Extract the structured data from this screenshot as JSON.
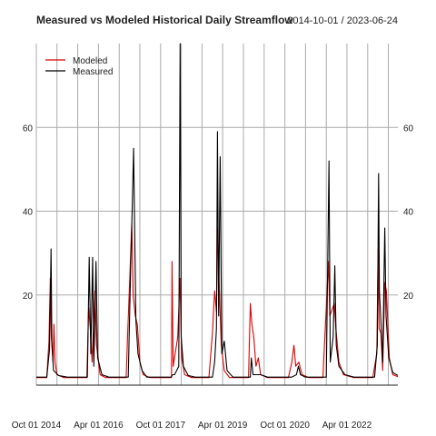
{
  "chart_data": {
    "type": "line",
    "title": "Measured vs Modeled Historical Daily Streamflow",
    "date_range": "2014-10-01 / 2023-06-24",
    "x_tick_labels": [
      "Oct 01 2014",
      "Apr 01 2016",
      "Oct 01 2017",
      "Apr 01 2019",
      "Oct 01 2020",
      "Apr 01 2022"
    ],
    "x_ticks_dates": [
      "2014-10-01",
      "2016-04-01",
      "2017-10-01",
      "2019-04-01",
      "2020-10-01",
      "2022-04-01"
    ],
    "xlim": [
      "2014-10-01",
      "2023-06-24"
    ],
    "ylim": [
      -1.5,
      80
    ],
    "y_ticks": [
      20,
      40,
      60
    ],
    "y_ticks_both_sides": true,
    "grid": true,
    "legend_position": "top-left",
    "series": [
      {
        "name": "Modeled",
        "color": "#dd0000",
        "points": [
          [
            "2014-10-01",
            0.3
          ],
          [
            "2015-01-01",
            0.3
          ],
          [
            "2015-01-20",
            9
          ],
          [
            "2015-02-01",
            24
          ],
          [
            "2015-02-10",
            10
          ],
          [
            "2015-02-25",
            4
          ],
          [
            "2015-03-05",
            13
          ],
          [
            "2015-03-15",
            4
          ],
          [
            "2015-04-01",
            1
          ],
          [
            "2015-06-01",
            0.3
          ],
          [
            "2015-12-20",
            0.3
          ],
          [
            "2016-01-05",
            17
          ],
          [
            "2016-01-20",
            12
          ],
          [
            "2016-02-05",
            4
          ],
          [
            "2016-03-01",
            21
          ],
          [
            "2016-03-15",
            8
          ],
          [
            "2016-04-15",
            1
          ],
          [
            "2016-06-01",
            0.3
          ],
          [
            "2016-12-01",
            0.3
          ],
          [
            "2016-12-15",
            11
          ],
          [
            "2017-01-05",
            26
          ],
          [
            "2017-01-20",
            37
          ],
          [
            "2017-02-01",
            20
          ],
          [
            "2017-02-20",
            15
          ],
          [
            "2017-03-10",
            13
          ],
          [
            "2017-04-01",
            4
          ],
          [
            "2017-05-01",
            1
          ],
          [
            "2017-07-01",
            0.3
          ],
          [
            "2018-01-05",
            0.3
          ],
          [
            "2018-01-10",
            28
          ],
          [
            "2018-01-20",
            3
          ],
          [
            "2018-03-01",
            10
          ],
          [
            "2018-03-20",
            24
          ],
          [
            "2018-04-05",
            5
          ],
          [
            "2018-05-01",
            1
          ],
          [
            "2018-07-01",
            0.3
          ],
          [
            "2018-12-01",
            0.3
          ],
          [
            "2019-01-01",
            11
          ],
          [
            "2019-01-20",
            21
          ],
          [
            "2019-02-05",
            16
          ],
          [
            "2019-02-15",
            36
          ],
          [
            "2019-03-01",
            23
          ],
          [
            "2019-03-20",
            8
          ],
          [
            "2019-04-15",
            2
          ],
          [
            "2019-06-01",
            0.3
          ],
          [
            "2019-11-15",
            0.3
          ],
          [
            "2019-12-01",
            18
          ],
          [
            "2019-12-15",
            13
          ],
          [
            "2020-01-01",
            10
          ],
          [
            "2020-01-20",
            3
          ],
          [
            "2020-02-10",
            5
          ],
          [
            "2020-03-01",
            1
          ],
          [
            "2020-05-01",
            0.3
          ],
          [
            "2020-11-01",
            0.3
          ],
          [
            "2020-12-01",
            4
          ],
          [
            "2020-12-20",
            8
          ],
          [
            "2021-01-05",
            3
          ],
          [
            "2021-02-01",
            4
          ],
          [
            "2021-03-01",
            1
          ],
          [
            "2021-05-01",
            0.3
          ],
          [
            "2021-09-01",
            0.3
          ],
          [
            "2021-10-20",
            28
          ],
          [
            "2021-11-01",
            15
          ],
          [
            "2021-12-10",
            18
          ],
          [
            "2021-12-25",
            12
          ],
          [
            "2022-01-20",
            4
          ],
          [
            "2022-03-01",
            1
          ],
          [
            "2022-06-01",
            0.3
          ],
          [
            "2022-11-15",
            0.3
          ],
          [
            "2022-12-20",
            6
          ],
          [
            "2023-01-01",
            31
          ],
          [
            "2023-01-10",
            12
          ],
          [
            "2023-01-25",
            11
          ],
          [
            "2023-02-10",
            2
          ],
          [
            "2023-03-01",
            23
          ],
          [
            "2023-03-15",
            21
          ],
          [
            "2023-04-10",
            5
          ],
          [
            "2023-05-10",
            1
          ],
          [
            "2023-06-24",
            0.5
          ]
        ]
      },
      {
        "name": "Measured",
        "color": "#000000",
        "points": [
          [
            "2014-10-01",
            0.4
          ],
          [
            "2015-01-01",
            0.4
          ],
          [
            "2015-01-25",
            7
          ],
          [
            "2015-02-08",
            31
          ],
          [
            "2015-02-15",
            9
          ],
          [
            "2015-03-01",
            2
          ],
          [
            "2015-04-15",
            0.8
          ],
          [
            "2015-07-01",
            0.4
          ],
          [
            "2015-12-25",
            0.4
          ],
          [
            "2016-01-10",
            29
          ],
          [
            "2016-01-25",
            6
          ],
          [
            "2016-02-10",
            29
          ],
          [
            "2016-02-20",
            3
          ],
          [
            "2016-03-10",
            28
          ],
          [
            "2016-03-25",
            5
          ],
          [
            "2016-05-01",
            1
          ],
          [
            "2016-07-01",
            0.4
          ],
          [
            "2016-12-20",
            0.4
          ],
          [
            "2017-01-10",
            27
          ],
          [
            "2017-01-25",
            42
          ],
          [
            "2017-02-05",
            55
          ],
          [
            "2017-02-15",
            33
          ],
          [
            "2017-02-25",
            14
          ],
          [
            "2017-03-15",
            6
          ],
          [
            "2017-04-20",
            2
          ],
          [
            "2017-06-01",
            0.4
          ],
          [
            "2018-01-01",
            0.4
          ],
          [
            "2018-01-15",
            1
          ],
          [
            "2018-02-01",
            1
          ],
          [
            "2018-03-10",
            3
          ],
          [
            "2018-03-22",
            80
          ],
          [
            "2018-04-01",
            10
          ],
          [
            "2018-04-20",
            3
          ],
          [
            "2018-06-01",
            0.8
          ],
          [
            "2018-08-01",
            0.4
          ],
          [
            "2019-01-01",
            0.4
          ],
          [
            "2019-01-20",
            4
          ],
          [
            "2019-02-05",
            12
          ],
          [
            "2019-02-14",
            59
          ],
          [
            "2019-02-25",
            15
          ],
          [
            "2019-03-10",
            53
          ],
          [
            "2019-03-25",
            6
          ],
          [
            "2019-04-15",
            9
          ],
          [
            "2019-05-10",
            2
          ],
          [
            "2019-07-01",
            0.4
          ],
          [
            "2019-12-01",
            0.4
          ],
          [
            "2019-12-10",
            5
          ],
          [
            "2019-12-25",
            1
          ],
          [
            "2020-01-20",
            1
          ],
          [
            "2020-03-01",
            1
          ],
          [
            "2020-05-01",
            0.4
          ],
          [
            "2020-12-01",
            0.4
          ],
          [
            "2021-01-10",
            1
          ],
          [
            "2021-01-28",
            3
          ],
          [
            "2021-02-15",
            1
          ],
          [
            "2021-04-01",
            0.4
          ],
          [
            "2021-10-01",
            0.4
          ],
          [
            "2021-10-25",
            52
          ],
          [
            "2021-11-05",
            4
          ],
          [
            "2021-12-01",
            10
          ],
          [
            "2021-12-15",
            27
          ],
          [
            "2021-12-28",
            8
          ],
          [
            "2022-01-20",
            3
          ],
          [
            "2022-03-15",
            1
          ],
          [
            "2022-06-01",
            0.4
          ],
          [
            "2022-12-01",
            0.4
          ],
          [
            "2022-12-25",
            8
          ],
          [
            "2023-01-05",
            49
          ],
          [
            "2023-01-12",
            21
          ],
          [
            "2023-01-25",
            14
          ],
          [
            "2023-02-10",
            4
          ],
          [
            "2023-03-01",
            36
          ],
          [
            "2023-03-12",
            15
          ],
          [
            "2023-04-05",
            5
          ],
          [
            "2023-05-10",
            1.5
          ],
          [
            "2023-06-24",
            0.8
          ]
        ]
      }
    ]
  }
}
